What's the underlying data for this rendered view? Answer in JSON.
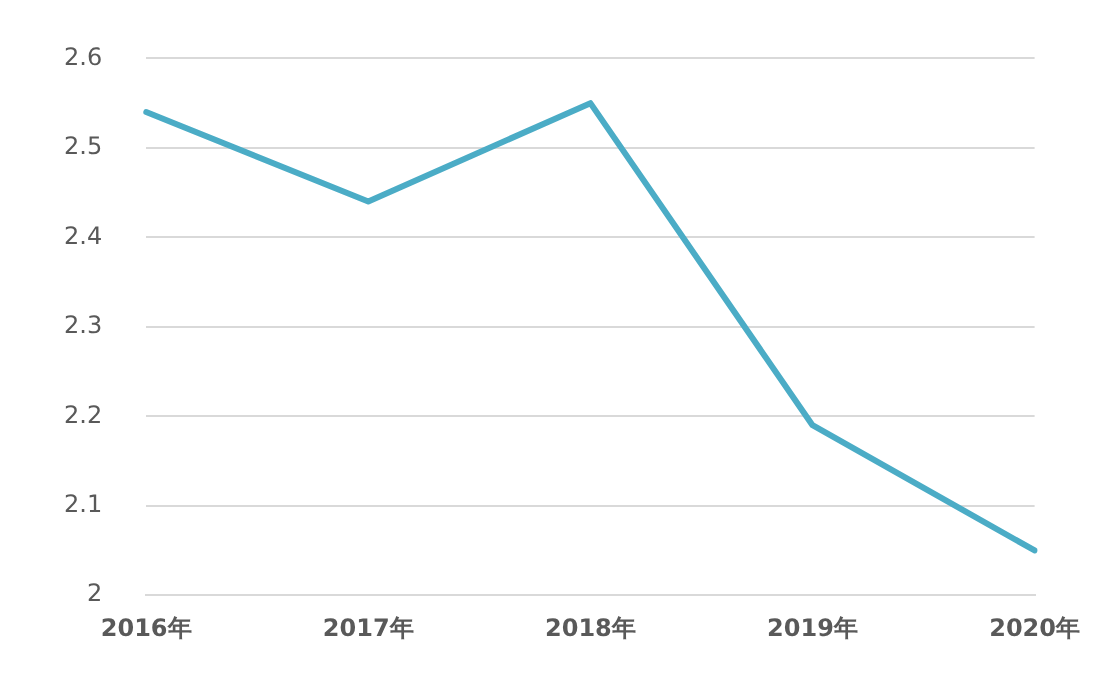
{
  "chart_data": {
    "type": "line",
    "categories": [
      "2016年",
      "2017年",
      "2018年",
      "2019年",
      "2020年"
    ],
    "series": [
      {
        "color": "#4bacc6",
        "values": [
          2.54,
          2.44,
          2.55,
          2.19,
          2.05
        ]
      }
    ],
    "ylim": [
      2,
      2.6
    ],
    "yticks": [
      2,
      2.1,
      2.2,
      2.3,
      2.4,
      2.5,
      2.6
    ],
    "grid": "y",
    "legend": false,
    "marker": "none",
    "line_style": "solid"
  }
}
